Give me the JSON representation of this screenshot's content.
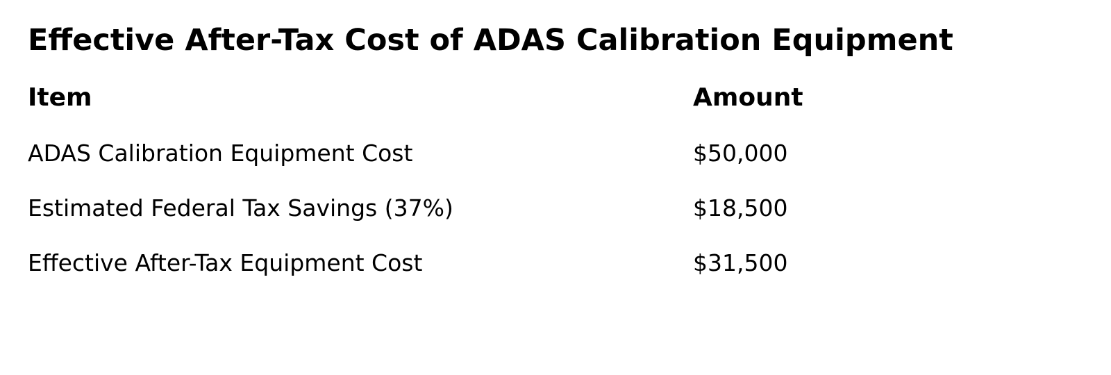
{
  "figure": {
    "title": "Effective After-Tax Cost of ADAS Calibration Equipment",
    "background_color": "#ffffff",
    "text_color": "#000000"
  },
  "table": {
    "headers": {
      "item": "Item",
      "amount": "Amount"
    },
    "rows": [
      {
        "item": "ADAS Calibration Equipment Cost",
        "amount": "$50,000"
      },
      {
        "item": "Estimated Federal Tax Savings (37%)",
        "amount": "$18,500"
      },
      {
        "item": "Effective After-Tax Equipment Cost",
        "amount": "$31,500"
      }
    ]
  },
  "chart_data": {
    "type": "table",
    "title": "Effective After-Tax Cost of ADAS Calibration Equipment",
    "columns": [
      "Item",
      "Amount"
    ],
    "rows": [
      [
        "ADAS Calibration Equipment Cost",
        "$50,000"
      ],
      [
        "Estimated Federal Tax Savings (37%)",
        "$18,500"
      ],
      [
        "Effective After-Tax Equipment Cost",
        "$31,500"
      ]
    ],
    "values_numeric": {
      "equipment_cost_usd": 50000,
      "federal_tax_savings_usd": 18500,
      "effective_after_tax_cost_usd": 31500,
      "tax_rate_percent": 37
    },
    "layout": {
      "grid": false,
      "borders": false,
      "legend": false
    }
  }
}
